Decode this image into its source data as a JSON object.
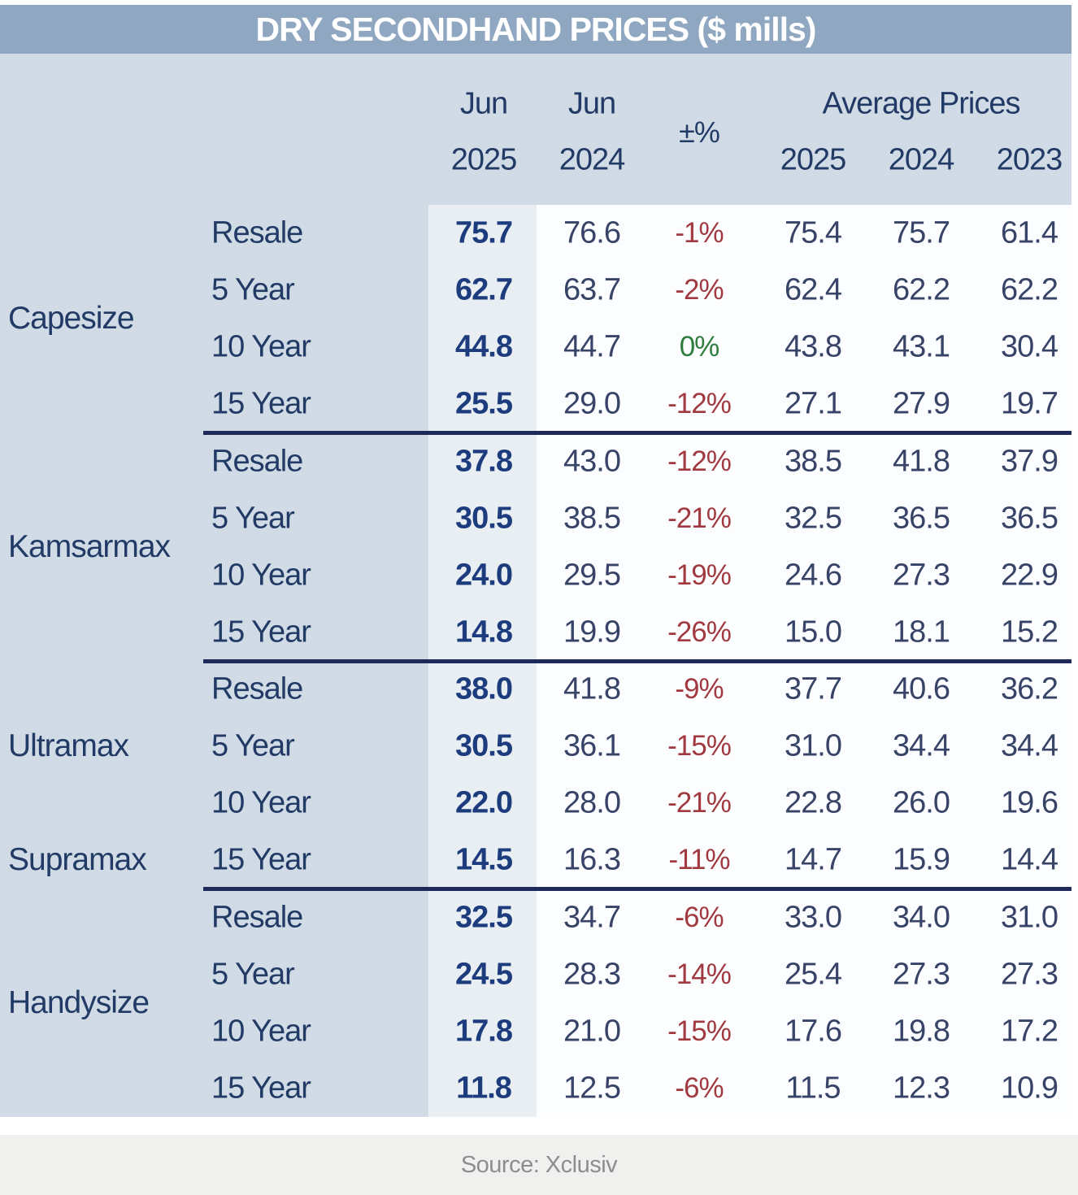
{
  "title": "DRY SECONDHAND PRICES ($ mills)",
  "header": {
    "col1_line1": "Jun",
    "col1_line2": "2025",
    "col2_line1": "Jun",
    "col2_line2": "2024",
    "pct": "±%",
    "avg_title": "Average Prices",
    "avg_years": [
      "2025",
      "2024",
      "2023"
    ]
  },
  "source": "Source: Xclusiv",
  "colors": {
    "title_bar_bg": "#8fa7c0",
    "title_text": "#ffffff",
    "body_bg": "#d0dbe5",
    "jun2025_band_bg": "#e9eef3",
    "data_bg": "#fcfdfe",
    "navy_label": "#223a66",
    "value_bold_blue": "#1c3c7d",
    "value_regular": "#374468",
    "negative_red": "#a03a40",
    "positive_green": "#2e7d3e",
    "separator_line": "#1e2a5a",
    "footer_bg": "#f0f0ee",
    "source_text": "#8d8d8d"
  },
  "chart_data": {
    "type": "table",
    "title": "DRY SECONDHAND PRICES ($ mills)",
    "unit": "$ millions",
    "columns": [
      "Jun 2025",
      "Jun 2024",
      "±%",
      "Average 2025",
      "Average 2024",
      "Average 2023"
    ],
    "groups": [
      "Capesize",
      "Kamsarmax",
      "Ultramax",
      "Supramax",
      "Handysize"
    ],
    "rows": [
      {
        "group": "Capesize",
        "label": "Resale",
        "jun2025": "75.7",
        "jun2024": "76.6",
        "pct": "-1%",
        "pct_type": "neg",
        "avg2025": "75.4",
        "avg2024": "75.7",
        "avg2023": "61.4"
      },
      {
        "group": "Capesize",
        "label": "5 Year",
        "jun2025": "62.7",
        "jun2024": "63.7",
        "pct": "-2%",
        "pct_type": "neg",
        "avg2025": "62.4",
        "avg2024": "62.2",
        "avg2023": "62.2"
      },
      {
        "group": "Capesize",
        "label": "10 Year",
        "jun2025": "44.8",
        "jun2024": "44.7",
        "pct": "0%",
        "pct_type": "zero",
        "avg2025": "43.8",
        "avg2024": "43.1",
        "avg2023": "30.4"
      },
      {
        "group": "Capesize",
        "label": "15 Year",
        "jun2025": "25.5",
        "jun2024": "29.0",
        "pct": "-12%",
        "pct_type": "neg",
        "avg2025": "27.1",
        "avg2024": "27.9",
        "avg2023": "19.7"
      },
      {
        "group": "Kamsarmax",
        "label": "Resale",
        "jun2025": "37.8",
        "jun2024": "43.0",
        "pct": "-12%",
        "pct_type": "neg",
        "avg2025": "38.5",
        "avg2024": "41.8",
        "avg2023": "37.9"
      },
      {
        "group": "Kamsarmax",
        "label": "5 Year",
        "jun2025": "30.5",
        "jun2024": "38.5",
        "pct": "-21%",
        "pct_type": "neg",
        "avg2025": "32.5",
        "avg2024": "36.5",
        "avg2023": "36.5"
      },
      {
        "group": "Kamsarmax",
        "label": "10 Year",
        "jun2025": "24.0",
        "jun2024": "29.5",
        "pct": "-19%",
        "pct_type": "neg",
        "avg2025": "24.6",
        "avg2024": "27.3",
        "avg2023": "22.9"
      },
      {
        "group": "Kamsarmax",
        "label": "15 Year",
        "jun2025": "14.8",
        "jun2024": "19.9",
        "pct": "-26%",
        "pct_type": "neg",
        "avg2025": "15.0",
        "avg2024": "18.1",
        "avg2023": "15.2"
      },
      {
        "group": "Ultramax",
        "label": "Resale",
        "jun2025": "38.0",
        "jun2024": "41.8",
        "pct": "-9%",
        "pct_type": "neg",
        "avg2025": "37.7",
        "avg2024": "40.6",
        "avg2023": "36.2"
      },
      {
        "group": "Ultramax",
        "label": "5 Year",
        "jun2025": "30.5",
        "jun2024": "36.1",
        "pct": "-15%",
        "pct_type": "neg",
        "avg2025": "31.0",
        "avg2024": "34.4",
        "avg2023": "34.4"
      },
      {
        "group": "Ultramax",
        "label": "10 Year",
        "jun2025": "22.0",
        "jun2024": "28.0",
        "pct": "-21%",
        "pct_type": "neg",
        "avg2025": "22.8",
        "avg2024": "26.0",
        "avg2023": "19.6"
      },
      {
        "group": "Supramax",
        "label": "15 Year",
        "jun2025": "14.5",
        "jun2024": "16.3",
        "pct": "-11%",
        "pct_type": "neg",
        "avg2025": "14.7",
        "avg2024": "15.9",
        "avg2023": "14.4"
      },
      {
        "group": "Handysize",
        "label": "Resale",
        "jun2025": "32.5",
        "jun2024": "34.7",
        "pct": "-6%",
        "pct_type": "neg",
        "avg2025": "33.0",
        "avg2024": "34.0",
        "avg2023": "31.0"
      },
      {
        "group": "Handysize",
        "label": "5 Year",
        "jun2025": "24.5",
        "jun2024": "28.3",
        "pct": "-14%",
        "pct_type": "neg",
        "avg2025": "25.4",
        "avg2024": "27.3",
        "avg2023": "27.3"
      },
      {
        "group": "Handysize",
        "label": "10 Year",
        "jun2025": "17.8",
        "jun2024": "21.0",
        "pct": "-15%",
        "pct_type": "neg",
        "avg2025": "17.6",
        "avg2024": "19.8",
        "avg2023": "17.2"
      },
      {
        "group": "Handysize",
        "label": "15 Year",
        "jun2025": "11.8",
        "jun2024": "12.5",
        "pct": "-6%",
        "pct_type": "neg",
        "avg2025": "11.5",
        "avg2024": "12.3",
        "avg2023": "10.9"
      }
    ]
  }
}
